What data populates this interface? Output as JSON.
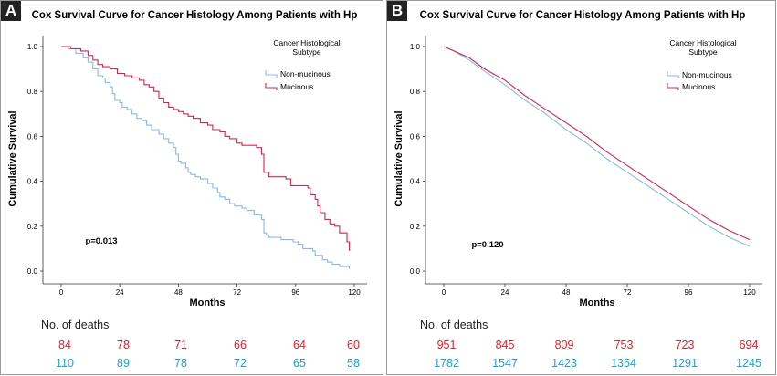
{
  "panels": [
    {
      "id": "a",
      "letter": "A",
      "deaths_title": "No. of deaths",
      "deaths": {
        "mucinous": [
          "84",
          "78",
          "71",
          "66",
          "64",
          "60"
        ],
        "non_mucinous": [
          "110",
          "89",
          "78",
          "72",
          "65",
          "58"
        ]
      }
    },
    {
      "id": "b",
      "letter": "B",
      "deaths_title": "No. of deaths",
      "deaths": {
        "mucinous": [
          "951",
          "845",
          "809",
          "753",
          "723",
          "694"
        ],
        "non_mucinous": [
          "1782",
          "1547",
          "1423",
          "1354",
          "1291",
          "1245"
        ]
      }
    }
  ],
  "colors": {
    "mucinous": "#d6244c",
    "non_mucinous": "#8db8e0",
    "deaths_mucinous": "#e8202a",
    "deaths_non_mucinous": "#1a9fd8"
  },
  "chart_data": [
    {
      "type": "line",
      "step": true,
      "title": "Cox Survival Curve for Cancer Histology Among Patients with Hp",
      "xlabel": "Months",
      "ylabel": "Cumulative Survival",
      "xticks": [
        "0",
        "24",
        "48",
        "72",
        "96",
        "120"
      ],
      "yticks": [
        "0.0",
        "0.2",
        "0.4",
        "0.6",
        "0.8",
        "1.0"
      ],
      "xlim": [
        0,
        120
      ],
      "ylim": [
        0,
        1
      ],
      "legend_title": "Cancer Histological Subtype",
      "legend_position": "top-right",
      "annotation": "p=0.013",
      "series": [
        {
          "name": "Non-mucinous",
          "x": [
            0,
            3,
            6,
            9,
            11,
            13,
            15,
            17,
            18,
            20,
            21,
            22,
            24,
            25,
            27,
            29,
            31,
            33,
            35,
            37,
            40,
            42,
            44,
            46,
            47,
            48,
            49,
            51,
            52,
            53,
            55,
            57,
            60,
            62,
            64,
            65,
            67,
            69,
            71,
            74,
            76,
            79,
            82,
            83,
            84,
            85,
            87,
            90,
            93,
            95,
            97,
            99,
            103,
            104,
            107,
            109,
            111,
            114,
            118
          ],
          "y": [
            1.0,
            0.99,
            0.97,
            0.95,
            0.93,
            0.9,
            0.87,
            0.86,
            0.84,
            0.82,
            0.79,
            0.76,
            0.75,
            0.73,
            0.72,
            0.7,
            0.68,
            0.67,
            0.65,
            0.63,
            0.61,
            0.59,
            0.57,
            0.55,
            0.52,
            0.49,
            0.48,
            0.46,
            0.44,
            0.43,
            0.42,
            0.41,
            0.39,
            0.37,
            0.35,
            0.33,
            0.32,
            0.3,
            0.29,
            0.28,
            0.27,
            0.25,
            0.23,
            0.17,
            0.16,
            0.15,
            0.15,
            0.14,
            0.14,
            0.13,
            0.12,
            0.1,
            0.09,
            0.07,
            0.05,
            0.04,
            0.03,
            0.02,
            0.01
          ]
        },
        {
          "name": "Mucinous",
          "x": [
            0,
            4,
            8,
            11,
            13,
            15,
            17,
            20,
            23,
            26,
            29,
            32,
            34,
            36,
            38,
            40,
            42,
            44,
            46,
            48,
            50,
            52,
            54,
            57,
            60,
            62,
            65,
            67,
            69,
            72,
            74,
            76,
            80,
            82,
            83,
            85,
            87,
            90,
            92,
            94,
            96,
            99,
            101,
            102,
            104,
            105,
            106,
            108,
            110,
            112,
            114,
            117,
            118
          ],
          "y": [
            1.0,
            0.99,
            0.98,
            0.96,
            0.94,
            0.92,
            0.91,
            0.9,
            0.88,
            0.87,
            0.86,
            0.85,
            0.83,
            0.82,
            0.8,
            0.77,
            0.75,
            0.73,
            0.72,
            0.71,
            0.7,
            0.69,
            0.68,
            0.66,
            0.65,
            0.63,
            0.62,
            0.6,
            0.59,
            0.57,
            0.56,
            0.56,
            0.55,
            0.52,
            0.44,
            0.42,
            0.42,
            0.42,
            0.41,
            0.38,
            0.38,
            0.38,
            0.37,
            0.34,
            0.32,
            0.29,
            0.26,
            0.23,
            0.21,
            0.2,
            0.17,
            0.13,
            0.09
          ]
        }
      ]
    },
    {
      "type": "line",
      "step": false,
      "title": "Cox Survival Curve for Cancer Histology Among Patients with Hp",
      "xlabel": "Months",
      "ylabel": "Cumulative Survival",
      "xticks": [
        "0",
        "24",
        "48",
        "72",
        "96",
        "120"
      ],
      "yticks": [
        "0.0",
        "0.2",
        "0.4",
        "0.6",
        "0.8",
        "1.0"
      ],
      "xlim": [
        0,
        120
      ],
      "ylim": [
        0,
        1
      ],
      "legend_title": "Cancer Histological Subtype",
      "legend_position": "top-right",
      "annotation": "p=0.120",
      "series": [
        {
          "name": "Non-mucinous",
          "x": [
            0,
            4,
            10,
            16,
            24,
            32,
            40,
            48,
            56,
            64,
            72,
            80,
            88,
            96,
            104,
            112,
            120
          ],
          "y": [
            1.0,
            0.98,
            0.94,
            0.89,
            0.83,
            0.76,
            0.7,
            0.63,
            0.57,
            0.5,
            0.44,
            0.38,
            0.32,
            0.26,
            0.2,
            0.15,
            0.11
          ]
        },
        {
          "name": "Mucinous",
          "x": [
            0,
            4,
            10,
            16,
            24,
            32,
            40,
            48,
            56,
            64,
            72,
            80,
            88,
            96,
            104,
            112,
            120
          ],
          "y": [
            1.0,
            0.98,
            0.95,
            0.9,
            0.85,
            0.78,
            0.72,
            0.66,
            0.6,
            0.53,
            0.47,
            0.41,
            0.35,
            0.29,
            0.23,
            0.18,
            0.14
          ]
        }
      ]
    }
  ]
}
